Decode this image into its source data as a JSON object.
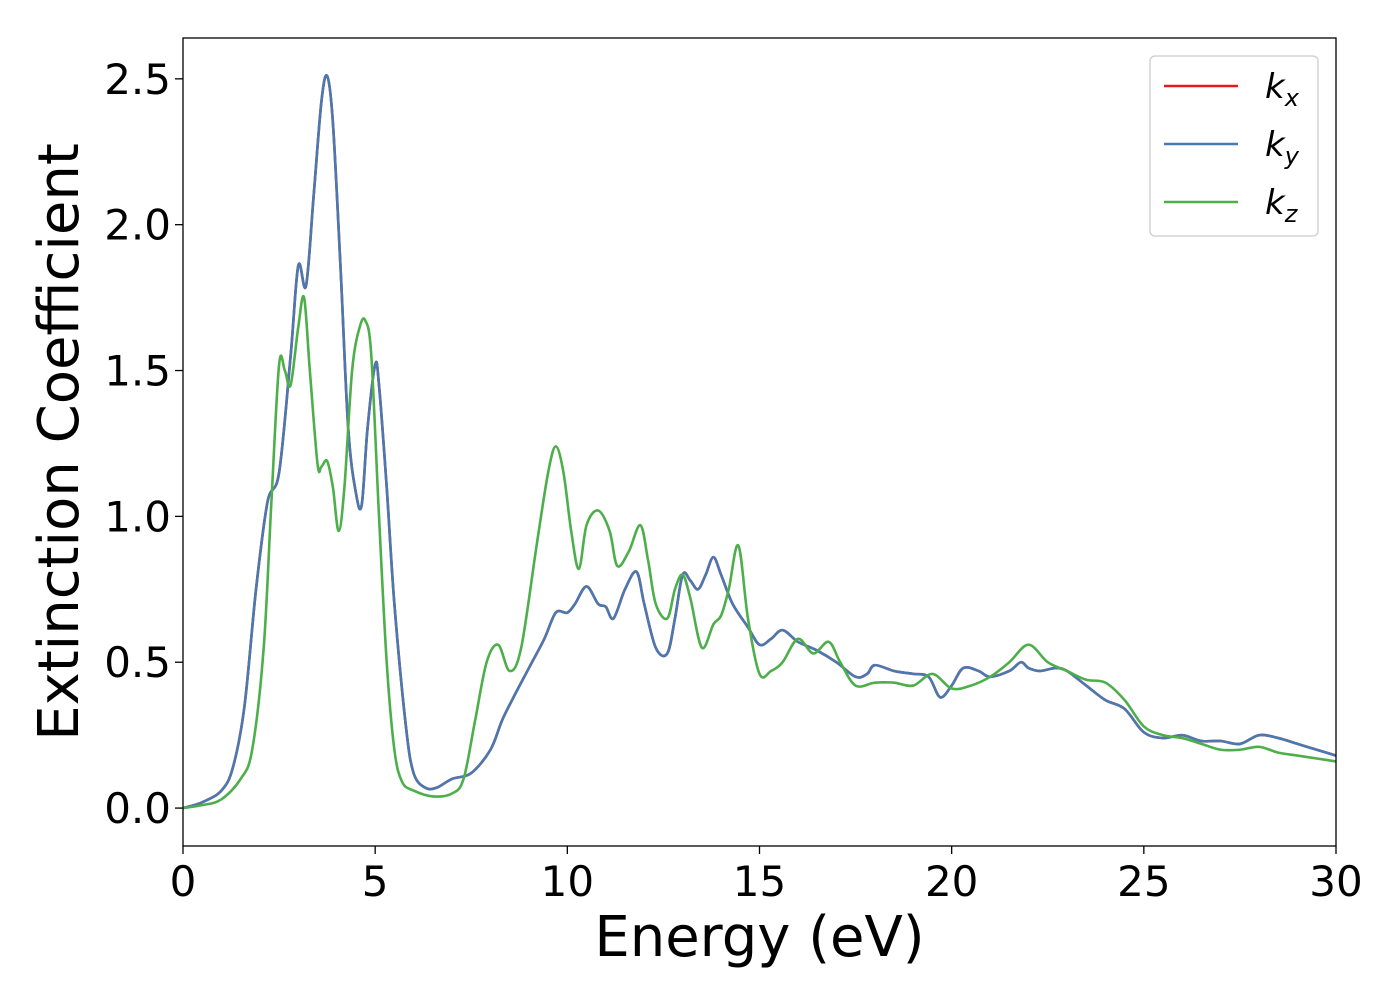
{
  "chart_data": {
    "type": "line",
    "xlabel": "Energy (eV)",
    "ylabel": "Extinction Coefficient",
    "xlim": [
      0,
      30
    ],
    "ylim": [
      -0.13,
      2.64
    ],
    "xticks": [
      "0",
      "5",
      "10",
      "15",
      "20",
      "25",
      "30"
    ],
    "yticks": [
      "0.0",
      "0.5",
      "1.0",
      "1.5",
      "2.0",
      "2.5"
    ],
    "grid": false,
    "legend_position": "top-right",
    "series": [
      {
        "name": "k_x",
        "label_base": "k",
        "label_sub": "x",
        "color": "#e41a1c",
        "x": [
          0,
          0.5,
          1,
          1.3,
          1.6,
          1.9,
          2.2,
          2.5,
          2.8,
          3.0,
          3.2,
          3.4,
          3.6,
          3.75,
          3.9,
          4.1,
          4.3,
          4.5,
          4.65,
          4.8,
          5.0,
          5.1,
          5.3,
          5.5,
          5.8,
          6.0,
          6.3,
          6.6,
          7.0,
          7.5,
          8.0,
          8.3,
          8.6,
          9.0,
          9.4,
          9.7,
          10.0,
          10.2,
          10.5,
          10.8,
          11.0,
          11.2,
          11.5,
          11.8,
          12.0,
          12.3,
          12.6,
          12.8,
          13.0,
          13.2,
          13.4,
          13.6,
          13.8,
          14.0,
          14.3,
          14.7,
          15.0,
          15.3,
          15.6,
          16.0,
          16.5,
          17.0,
          17.5,
          17.8,
          18.0,
          18.5,
          19.0,
          19.4,
          19.7,
          20.0,
          20.3,
          20.7,
          21.0,
          21.5,
          21.8,
          22.0,
          22.3,
          22.7,
          23.0,
          23.5,
          24.0,
          24.5,
          25.0,
          25.5,
          26.0,
          26.5,
          27.0,
          27.5,
          28.0,
          28.5,
          29.0,
          29.5,
          30.0
        ],
        "values": [
          0.0,
          0.02,
          0.06,
          0.14,
          0.35,
          0.75,
          1.05,
          1.15,
          1.55,
          1.86,
          1.79,
          2.1,
          2.42,
          2.51,
          2.35,
          1.85,
          1.3,
          1.08,
          1.04,
          1.3,
          1.52,
          1.45,
          1.1,
          0.7,
          0.28,
          0.12,
          0.07,
          0.07,
          0.1,
          0.12,
          0.2,
          0.3,
          0.38,
          0.48,
          0.58,
          0.67,
          0.67,
          0.7,
          0.76,
          0.7,
          0.69,
          0.65,
          0.75,
          0.81,
          0.7,
          0.55,
          0.53,
          0.65,
          0.8,
          0.78,
          0.75,
          0.8,
          0.86,
          0.8,
          0.7,
          0.62,
          0.56,
          0.58,
          0.61,
          0.57,
          0.54,
          0.5,
          0.45,
          0.46,
          0.49,
          0.47,
          0.46,
          0.45,
          0.38,
          0.42,
          0.48,
          0.47,
          0.45,
          0.47,
          0.5,
          0.48,
          0.47,
          0.48,
          0.47,
          0.42,
          0.37,
          0.34,
          0.26,
          0.24,
          0.25,
          0.23,
          0.23,
          0.22,
          0.25,
          0.24,
          0.22,
          0.2,
          0.18
        ]
      },
      {
        "name": "k_y",
        "label_base": "k",
        "label_sub": "y",
        "color": "#4a78b0",
        "x": [
          0,
          0.5,
          1,
          1.3,
          1.6,
          1.9,
          2.2,
          2.5,
          2.8,
          3.0,
          3.2,
          3.4,
          3.6,
          3.75,
          3.9,
          4.1,
          4.3,
          4.5,
          4.65,
          4.8,
          5.0,
          5.1,
          5.3,
          5.5,
          5.8,
          6.0,
          6.3,
          6.6,
          7.0,
          7.5,
          8.0,
          8.3,
          8.6,
          9.0,
          9.4,
          9.7,
          10.0,
          10.2,
          10.5,
          10.8,
          11.0,
          11.2,
          11.5,
          11.8,
          12.0,
          12.3,
          12.6,
          12.8,
          13.0,
          13.2,
          13.4,
          13.6,
          13.8,
          14.0,
          14.3,
          14.7,
          15.0,
          15.3,
          15.6,
          16.0,
          16.5,
          17.0,
          17.5,
          17.8,
          18.0,
          18.5,
          19.0,
          19.4,
          19.7,
          20.0,
          20.3,
          20.7,
          21.0,
          21.5,
          21.8,
          22.0,
          22.3,
          22.7,
          23.0,
          23.5,
          24.0,
          24.5,
          25.0,
          25.5,
          26.0,
          26.5,
          27.0,
          27.5,
          28.0,
          28.5,
          29.0,
          29.5,
          30.0
        ],
        "values": [
          0.0,
          0.02,
          0.06,
          0.14,
          0.35,
          0.75,
          1.05,
          1.15,
          1.55,
          1.86,
          1.79,
          2.1,
          2.42,
          2.51,
          2.35,
          1.85,
          1.3,
          1.08,
          1.04,
          1.3,
          1.52,
          1.45,
          1.1,
          0.7,
          0.28,
          0.12,
          0.07,
          0.07,
          0.1,
          0.12,
          0.2,
          0.3,
          0.38,
          0.48,
          0.58,
          0.67,
          0.67,
          0.7,
          0.76,
          0.7,
          0.69,
          0.65,
          0.75,
          0.81,
          0.7,
          0.55,
          0.53,
          0.65,
          0.8,
          0.78,
          0.75,
          0.8,
          0.86,
          0.8,
          0.7,
          0.62,
          0.56,
          0.58,
          0.61,
          0.57,
          0.54,
          0.5,
          0.45,
          0.46,
          0.49,
          0.47,
          0.46,
          0.45,
          0.38,
          0.42,
          0.48,
          0.47,
          0.45,
          0.47,
          0.5,
          0.48,
          0.47,
          0.48,
          0.47,
          0.42,
          0.37,
          0.34,
          0.26,
          0.24,
          0.25,
          0.23,
          0.23,
          0.22,
          0.25,
          0.24,
          0.22,
          0.2,
          0.18
        ]
      },
      {
        "name": "k_z",
        "label_base": "k",
        "label_sub": "z",
        "color": "#4daf4a",
        "x": [
          0,
          0.5,
          1,
          1.5,
          1.8,
          2.1,
          2.3,
          2.5,
          2.65,
          2.8,
          3.0,
          3.15,
          3.3,
          3.5,
          3.6,
          3.75,
          3.9,
          4.05,
          4.2,
          4.4,
          4.6,
          4.75,
          4.9,
          5.1,
          5.3,
          5.5,
          5.7,
          6.0,
          6.5,
          7.0,
          7.3,
          7.6,
          7.9,
          8.2,
          8.5,
          8.8,
          9.2,
          9.5,
          9.7,
          9.9,
          10.1,
          10.3,
          10.5,
          10.8,
          11.1,
          11.3,
          11.6,
          11.9,
          12.1,
          12.3,
          12.6,
          12.8,
          13.0,
          13.2,
          13.5,
          13.8,
          14.0,
          14.2,
          14.45,
          14.7,
          15.0,
          15.3,
          15.6,
          16.0,
          16.4,
          16.8,
          17.1,
          17.5,
          18.0,
          18.5,
          19.0,
          19.5,
          20.0,
          20.5,
          21.0,
          21.5,
          22.0,
          22.5,
          23.0,
          23.5,
          24.0,
          24.5,
          25.0,
          25.5,
          26.0,
          26.5,
          27.0,
          27.5,
          28.0,
          28.5,
          29.0,
          29.5,
          30.0
        ],
        "values": [
          0.0,
          0.01,
          0.03,
          0.1,
          0.2,
          0.55,
          1.05,
          1.52,
          1.5,
          1.45,
          1.65,
          1.75,
          1.5,
          1.18,
          1.17,
          1.19,
          1.1,
          0.95,
          1.1,
          1.5,
          1.65,
          1.67,
          1.55,
          1.0,
          0.5,
          0.2,
          0.09,
          0.06,
          0.04,
          0.05,
          0.1,
          0.3,
          0.5,
          0.56,
          0.47,
          0.55,
          0.9,
          1.15,
          1.24,
          1.15,
          0.95,
          0.82,
          0.97,
          1.02,
          0.95,
          0.83,
          0.88,
          0.97,
          0.85,
          0.7,
          0.65,
          0.75,
          0.8,
          0.72,
          0.55,
          0.63,
          0.66,
          0.75,
          0.9,
          0.65,
          0.46,
          0.47,
          0.5,
          0.58,
          0.53,
          0.57,
          0.5,
          0.42,
          0.43,
          0.43,
          0.42,
          0.46,
          0.41,
          0.42,
          0.45,
          0.5,
          0.56,
          0.5,
          0.47,
          0.44,
          0.43,
          0.37,
          0.28,
          0.25,
          0.24,
          0.22,
          0.2,
          0.2,
          0.21,
          0.19,
          0.18,
          0.17,
          0.16
        ]
      }
    ]
  }
}
